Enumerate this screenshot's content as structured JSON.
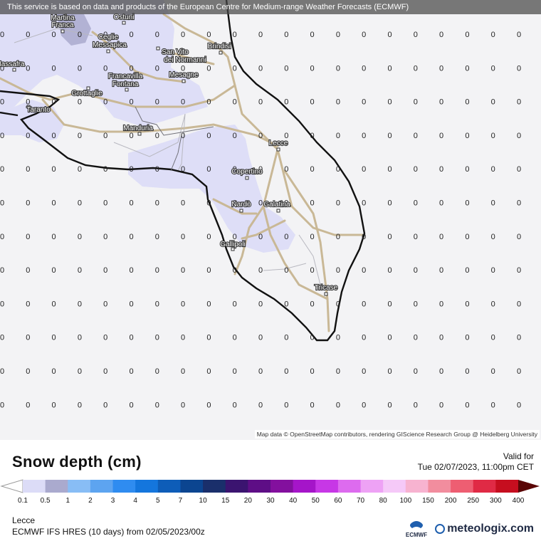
{
  "banner": "This service is based on data and products of the European Centre for Medium-range Weather Forecasts (ECMWF)",
  "attribution": "Map data © OpenStreetMap contributors, rendering GIScience Research Group @ Heidelberg University",
  "title": "Snow depth (cm)",
  "valid_label": "Valid for",
  "valid_time": "Tue 02/07/2023, 11:00pm CET",
  "location": "Lecce",
  "model": "ECMWF IFS HRES (10 days) from 02/05/2023/00z",
  "logos": {
    "ecmwf": "ECMWF",
    "meteologix": "meteologix.com"
  },
  "grid_value": "0",
  "cities": [
    {
      "name": "Martina",
      "name2": "Franca"
    },
    {
      "name": "Ostuni",
      "name2": ""
    },
    {
      "name": "Ceglie",
      "name2": "Messapica"
    },
    {
      "name": "San Vito",
      "name2": "dei Normanni"
    },
    {
      "name": "Brindisi",
      "name2": ""
    },
    {
      "name": "Massafra",
      "name2": ""
    },
    {
      "name": "Francavilla",
      "name2": "Fontana"
    },
    {
      "name": "Mesagne",
      "name2": ""
    },
    {
      "name": "Grottaglie",
      "name2": ""
    },
    {
      "name": "Taranto",
      "name2": ""
    },
    {
      "name": "Manduria",
      "name2": ""
    },
    {
      "name": "Lecce",
      "name2": ""
    },
    {
      "name": "Copertino",
      "name2": ""
    },
    {
      "name": "Nardò",
      "name2": ""
    },
    {
      "name": "Galatina",
      "name2": ""
    },
    {
      "name": "Gallipoli",
      "name2": ""
    },
    {
      "name": "Tricase",
      "name2": ""
    }
  ],
  "legend": {
    "ticks": [
      "0.1",
      "0.5",
      "1",
      "2",
      "3",
      "4",
      "5",
      "7",
      "10",
      "15",
      "20",
      "30",
      "40",
      "50",
      "60",
      "70",
      "80",
      "100",
      "150",
      "200",
      "250",
      "300",
      "400"
    ],
    "colors": [
      "#dcdcf7",
      "#aaaace",
      "#88bdf5",
      "#5da4f0",
      "#2f8cf0",
      "#1476dd",
      "#0e5db8",
      "#0b4590",
      "#1a2f6b",
      "#3b1470",
      "#5e0e86",
      "#83109e",
      "#a515c9",
      "#c737e6",
      "#dd6bef",
      "#eea2f5",
      "#f5c9f8",
      "#f7b3d0",
      "#f28d9e",
      "#ee5e72",
      "#e02a45",
      "#c60e1f",
      "#a50b0b",
      "#800808",
      "#5a0505"
    ]
  }
}
